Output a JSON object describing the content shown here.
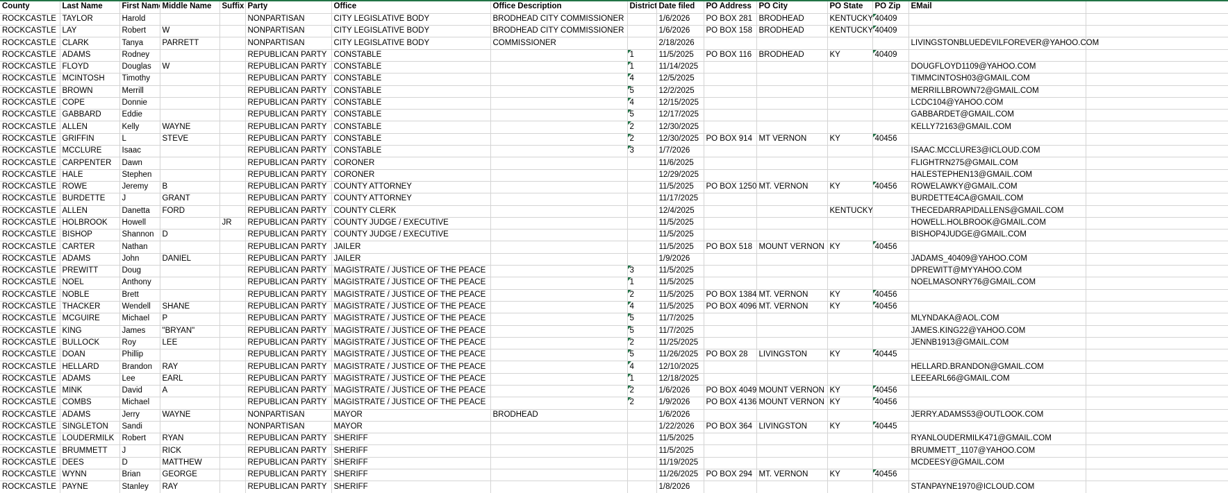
{
  "colors": {
    "top_border_green": "#217346",
    "gridline": "#d4d4d4",
    "flag_triangle_green": "#217346",
    "text": "#000000",
    "background": "#ffffff"
  },
  "table": {
    "columns": [
      {
        "key": "county",
        "label": "County"
      },
      {
        "key": "last",
        "label": "Last Name"
      },
      {
        "key": "first",
        "label": "First Name"
      },
      {
        "key": "middle",
        "label": "Middle Name"
      },
      {
        "key": "suffix",
        "label": "Suffix"
      },
      {
        "key": "party",
        "label": "Party"
      },
      {
        "key": "office",
        "label": "Office"
      },
      {
        "key": "desc",
        "label": "Office Description"
      },
      {
        "key": "district",
        "label": "District"
      },
      {
        "key": "date",
        "label": "Date filed"
      },
      {
        "key": "address",
        "label": "PO Address"
      },
      {
        "key": "city",
        "label": "PO City"
      },
      {
        "key": "state",
        "label": "PO State"
      },
      {
        "key": "zip",
        "label": "PO Zip"
      },
      {
        "key": "email",
        "label": "EMail"
      }
    ],
    "rows": [
      [
        "ROCKCASTLE",
        "TAYLOR",
        "Harold",
        "",
        "",
        "NONPARTISAN",
        "CITY LEGISLATIVE BODY",
        "BRODHEAD CITY COMMISSIONER",
        "",
        "1/6/2026",
        "PO BOX 281",
        "BRODHEAD",
        "KENTUCKY",
        "40409",
        ""
      ],
      [
        "ROCKCASTLE",
        "LAY",
        "Robert",
        "W",
        "",
        "NONPARTISAN",
        "CITY LEGISLATIVE BODY",
        "BRODHEAD CITY COMMISSIONER",
        "",
        "1/6/2026",
        "PO BOX 158",
        "BRODHEAD",
        "KENTUCKY",
        "40409",
        ""
      ],
      [
        "ROCKCASTLE",
        "CLARK",
        "Tanya",
        "PARRETT",
        "",
        "NONPARTISAN",
        "CITY LEGISLATIVE BODY",
        "COMMISSIONER",
        "",
        "2/18/2026",
        "",
        "",
        "",
        "",
        "LIVINGSTONBLUEDEVILFOREVER@YAHOO.COM"
      ],
      [
        "ROCKCASTLE",
        "ADAMS",
        "Rodney",
        "",
        "",
        "REPUBLICAN PARTY",
        "CONSTABLE",
        "",
        "1",
        "11/5/2025",
        "PO BOX 116",
        "BRODHEAD",
        "KY",
        "40409",
        ""
      ],
      [
        "ROCKCASTLE",
        "FLOYD",
        "Douglas",
        "W",
        "",
        "REPUBLICAN PARTY",
        "CONSTABLE",
        "",
        "1",
        "11/14/2025",
        "",
        "",
        "",
        "",
        "DOUGFLOYD1109@YAHOO.COM"
      ],
      [
        "ROCKCASTLE",
        "MCINTOSH",
        "Timothy",
        "",
        "",
        "REPUBLICAN PARTY",
        "CONSTABLE",
        "",
        "4",
        "12/5/2025",
        "",
        "",
        "",
        "",
        "TIMMCINTOSH03@GMAIL.COM"
      ],
      [
        "ROCKCASTLE",
        "BROWN",
        "Merrill",
        "",
        "",
        "REPUBLICAN PARTY",
        "CONSTABLE",
        "",
        "5",
        "12/2/2025",
        "",
        "",
        "",
        "",
        "MERRILLBROWN72@GMAIL.COM"
      ],
      [
        "ROCKCASTLE",
        "COPE",
        "Donnie",
        "",
        "",
        "REPUBLICAN PARTY",
        "CONSTABLE",
        "",
        "4",
        "12/15/2025",
        "",
        "",
        "",
        "",
        "LCDC104@YAHOO.COM"
      ],
      [
        "ROCKCASTLE",
        "GABBARD",
        "Eddie",
        "",
        "",
        "REPUBLICAN PARTY",
        "CONSTABLE",
        "",
        "5",
        "12/17/2025",
        "",
        "",
        "",
        "",
        "GABBARDET@GMAIL.COM"
      ],
      [
        "ROCKCASTLE",
        "ALLEN",
        "Kelly",
        "WAYNE",
        "",
        "REPUBLICAN PARTY",
        "CONSTABLE",
        "",
        "2",
        "12/30/2025",
        "",
        "",
        "",
        "",
        "KELLY72163@GMAIL.COM"
      ],
      [
        "ROCKCASTLE",
        "GRIFFIN",
        "L",
        "STEVE",
        "",
        "REPUBLICAN PARTY",
        "CONSTABLE",
        "",
        "2",
        "12/30/2025",
        "PO BOX 914",
        "MT VERNON",
        "KY",
        "40456",
        ""
      ],
      [
        "ROCKCASTLE",
        "MCCLURE",
        "Isaac",
        "",
        "",
        "REPUBLICAN PARTY",
        "CONSTABLE",
        "",
        "3",
        "1/7/2026",
        "",
        "",
        "",
        "",
        "ISAAC.MCCLURE3@ICLOUD.COM"
      ],
      [
        "ROCKCASTLE",
        "CARPENTER",
        "Dawn",
        "",
        "",
        "REPUBLICAN PARTY",
        "CORONER",
        "",
        "",
        "11/6/2025",
        "",
        "",
        "",
        "",
        "FLIGHTRN275@GMAIL.COM"
      ],
      [
        "ROCKCASTLE",
        "HALE",
        "Stephen",
        "",
        "",
        "REPUBLICAN PARTY",
        "CORONER",
        "",
        "",
        "12/29/2025",
        "",
        "",
        "",
        "",
        "HALESTEPHEN13@GMAIL.COM"
      ],
      [
        "ROCKCASTLE",
        "ROWE",
        "Jeremy",
        "B",
        "",
        "REPUBLICAN PARTY",
        "COUNTY ATTORNEY",
        "",
        "",
        "11/5/2025",
        "PO BOX 1250",
        "MT. VERNON",
        "KY",
        "40456",
        "ROWELAWKY@GMAIL.COM"
      ],
      [
        "ROCKCASTLE",
        "BURDETTE",
        "J",
        "GRANT",
        "",
        "REPUBLICAN PARTY",
        "COUNTY ATTORNEY",
        "",
        "",
        "11/17/2025",
        "",
        "",
        "",
        "",
        "BURDETTE4CA@GMAIL.COM"
      ],
      [
        "ROCKCASTLE",
        "ALLEN",
        "Danetta",
        "FORD",
        "",
        "REPUBLICAN PARTY",
        "COUNTY CLERK",
        "",
        "",
        "12/4/2025",
        "",
        "",
        "KENTUCKY",
        "",
        "THECEDARRAPIDALLENS@GMAIL.COM"
      ],
      [
        "ROCKCASTLE",
        "HOLBROOK",
        "Howell",
        "",
        "JR",
        "REPUBLICAN PARTY",
        "COUNTY JUDGE / EXECUTIVE",
        "",
        "",
        "11/5/2025",
        "",
        "",
        "",
        "",
        "HOWELL.HOLBROOK@GMAIL.COM"
      ],
      [
        "ROCKCASTLE",
        "BISHOP",
        "Shannon",
        "D",
        "",
        "REPUBLICAN PARTY",
        "COUNTY JUDGE / EXECUTIVE",
        "",
        "",
        "11/5/2025",
        "",
        "",
        "",
        "",
        "BISHOP4JUDGE@GMAIL.COM"
      ],
      [
        "ROCKCASTLE",
        "CARTER",
        "Nathan",
        "",
        "",
        "REPUBLICAN PARTY",
        "JAILER",
        "",
        "",
        "11/5/2025",
        "PO BOX 518",
        "MOUNT VERNON",
        "KY",
        "40456",
        ""
      ],
      [
        "ROCKCASTLE",
        "ADAMS",
        "John",
        "DANIEL",
        "",
        "REPUBLICAN PARTY",
        "JAILER",
        "",
        "",
        "1/9/2026",
        "",
        "",
        "",
        "",
        "JADAMS_40409@YAHOO.COM"
      ],
      [
        "ROCKCASTLE",
        "PREWITT",
        "Doug",
        "",
        "",
        "REPUBLICAN PARTY",
        "MAGISTRATE / JUSTICE OF THE PEACE",
        "",
        "3",
        "11/5/2025",
        "",
        "",
        "",
        "",
        "DPREWITT@MYYAHOO.COM"
      ],
      [
        "ROCKCASTLE",
        "NOEL",
        "Anthony",
        "",
        "",
        "REPUBLICAN PARTY",
        "MAGISTRATE / JUSTICE OF THE PEACE",
        "",
        "1",
        "11/5/2025",
        "",
        "",
        "",
        "",
        "NOELMASONRY76@GMAIL.COM"
      ],
      [
        "ROCKCASTLE",
        "NOBLE",
        "Brett",
        "",
        "",
        "REPUBLICAN PARTY",
        "MAGISTRATE / JUSTICE OF THE PEACE",
        "",
        "2",
        "11/5/2025",
        "PO BOX 1384",
        "MT. VERNON",
        "KY",
        "40456",
        ""
      ],
      [
        "ROCKCASTLE",
        "THACKER",
        "Wendell",
        "SHANE",
        "",
        "REPUBLICAN PARTY",
        "MAGISTRATE / JUSTICE OF THE PEACE",
        "",
        "4",
        "11/5/2025",
        "PO BOX 4096",
        "MT. VERNON",
        "KY",
        "40456",
        ""
      ],
      [
        "ROCKCASTLE",
        "MCGUIRE",
        "Michael",
        "P",
        "",
        "REPUBLICAN PARTY",
        "MAGISTRATE / JUSTICE OF THE PEACE",
        "",
        "5",
        "11/7/2025",
        "",
        "",
        "",
        "",
        "MLYNDAKA@AOL.COM"
      ],
      [
        "ROCKCASTLE",
        "KING",
        "James",
        "\"BRYAN\"",
        "",
        "REPUBLICAN PARTY",
        "MAGISTRATE / JUSTICE OF THE PEACE",
        "",
        "5",
        "11/7/2025",
        "",
        "",
        "",
        "",
        "JAMES.KING22@YAHOO.COM"
      ],
      [
        "ROCKCASTLE",
        "BULLOCK",
        "Roy",
        "LEE",
        "",
        "REPUBLICAN PARTY",
        "MAGISTRATE / JUSTICE OF THE PEACE",
        "",
        "2",
        "11/25/2025",
        "",
        "",
        "",
        "",
        "JENNB1913@GMAIL.COM"
      ],
      [
        "ROCKCASTLE",
        "DOAN",
        "Phillip",
        "",
        "",
        "REPUBLICAN PARTY",
        "MAGISTRATE / JUSTICE OF THE PEACE",
        "",
        "5",
        "11/26/2025",
        "PO BOX 28",
        "LIVINGSTON",
        "KY",
        "40445",
        ""
      ],
      [
        "ROCKCASTLE",
        "HELLARD",
        "Brandon",
        "RAY",
        "",
        "REPUBLICAN PARTY",
        "MAGISTRATE / JUSTICE OF THE PEACE",
        "",
        "4",
        "12/10/2025",
        "",
        "",
        "",
        "",
        "HELLARD.BRANDON@GMAIL.COM"
      ],
      [
        "ROCKCASTLE",
        "ADAMS",
        "Lee",
        "EARL",
        "",
        "REPUBLICAN PARTY",
        "MAGISTRATE / JUSTICE OF THE PEACE",
        "",
        "1",
        "12/18/2025",
        "",
        "",
        "",
        "",
        "LEEEARL66@GMAIL.COM"
      ],
      [
        "ROCKCASTLE",
        "MINK",
        "David",
        "A",
        "",
        "REPUBLICAN PARTY",
        "MAGISTRATE / JUSTICE OF THE PEACE",
        "",
        "2",
        "1/6/2026",
        "PO BOX 4049",
        "MOUNT VERNON",
        "KY",
        "40456",
        ""
      ],
      [
        "ROCKCASTLE",
        "COMBS",
        "Michael",
        "",
        "",
        "REPUBLICAN PARTY",
        "MAGISTRATE / JUSTICE OF THE PEACE",
        "",
        "2",
        "1/9/2026",
        "PO BOX 4136",
        "MOUNT VERNON",
        "KY",
        "40456",
        ""
      ],
      [
        "ROCKCASTLE",
        "ADAMS",
        "Jerry",
        "WAYNE",
        "",
        "NONPARTISAN",
        "MAYOR",
        "BRODHEAD",
        "",
        "1/6/2026",
        "",
        "",
        "",
        "",
        "JERRY.ADAMS53@OUTLOOK.COM"
      ],
      [
        "ROCKCASTLE",
        "SINGLETON",
        "Sandi",
        "",
        "",
        "NONPARTISAN",
        "MAYOR",
        "",
        "",
        "1/22/2026",
        "PO BOX 364",
        "LIVINGSTON",
        "KY",
        "40445",
        ""
      ],
      [
        "ROCKCASTLE",
        "LOUDERMILK",
        "Robert",
        "RYAN",
        "",
        "REPUBLICAN PARTY",
        "SHERIFF",
        "",
        "",
        "11/5/2025",
        "",
        "",
        "",
        "",
        "RYANLOUDERMILK471@GMAIL.COM"
      ],
      [
        "ROCKCASTLE",
        "BRUMMETT",
        "J",
        "RICK",
        "",
        "REPUBLICAN PARTY",
        "SHERIFF",
        "",
        "",
        "11/5/2025",
        "",
        "",
        "",
        "",
        "BRUMMETT_1107@YAHOO.COM"
      ],
      [
        "ROCKCASTLE",
        "DEES",
        "D",
        "MATTHEW",
        "",
        "REPUBLICAN PARTY",
        "SHERIFF",
        "",
        "",
        "11/19/2025",
        "",
        "",
        "",
        "",
        "MCDEESY@GMAIL.COM"
      ],
      [
        "ROCKCASTLE",
        "WYNN",
        "Brian",
        "GEORGE",
        "",
        "REPUBLICAN PARTY",
        "SHERIFF",
        "",
        "",
        "11/26/2025",
        "PO BOX 294",
        "MT. VERNON",
        "KY",
        "40456",
        ""
      ],
      [
        "ROCKCASTLE",
        "PAYNE",
        "Stanley",
        "RAY",
        "",
        "REPUBLICAN PARTY",
        "SHERIFF",
        "",
        "",
        "1/8/2026",
        "",
        "",
        "",
        "",
        "STANPAYNE1970@ICLOUD.COM"
      ]
    ]
  }
}
